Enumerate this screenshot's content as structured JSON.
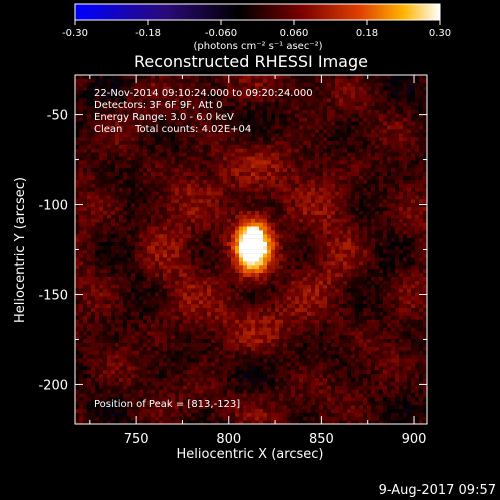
{
  "colors": {
    "background": "#000000",
    "foreground": "#ffffff",
    "colormap": [
      "#0000ff",
      "#2a0a78",
      "#000000",
      "#6a0000",
      "#d83c00",
      "#ffb000",
      "#ffffff"
    ]
  },
  "colorbar": {
    "min": -0.3,
    "max": 0.3,
    "tick_labels": [
      "-0.30",
      "-0.18",
      "-0.060",
      "0.060",
      "0.18",
      "0.30"
    ],
    "tick_values": [
      -0.3,
      -0.18,
      -0.06,
      0.06,
      0.18,
      0.3
    ],
    "units": "(photons cm⁻² s⁻¹ asec⁻²)"
  },
  "chart_data": {
    "type": "heatmap",
    "title": "Reconstructed RHESSI Image",
    "xlabel": "Heliocentric X (arcsec)",
    "ylabel": "Heliocentric Y (arcsec)",
    "xlim": [
      717,
      907
    ],
    "ylim": [
      -222,
      -28
    ],
    "x_ticks": [
      750,
      800,
      850,
      900
    ],
    "y_ticks": [
      -50,
      -100,
      -150,
      -200
    ],
    "peak": {
      "x": 813,
      "y": -123
    },
    "annotations": [
      "22-Nov-2014 09:10:24.000 to 09:20:24.000",
      "Detectors: 3F 6F 9F, Att 0",
      "Energy Range: 3.0 - 6.0 keV",
      "Clean    Total counts: 4.02E+04"
    ],
    "peak_label": "Position of Peak = [813,-123]"
  },
  "footer": {
    "date": "9-Aug-2017 09:57"
  }
}
